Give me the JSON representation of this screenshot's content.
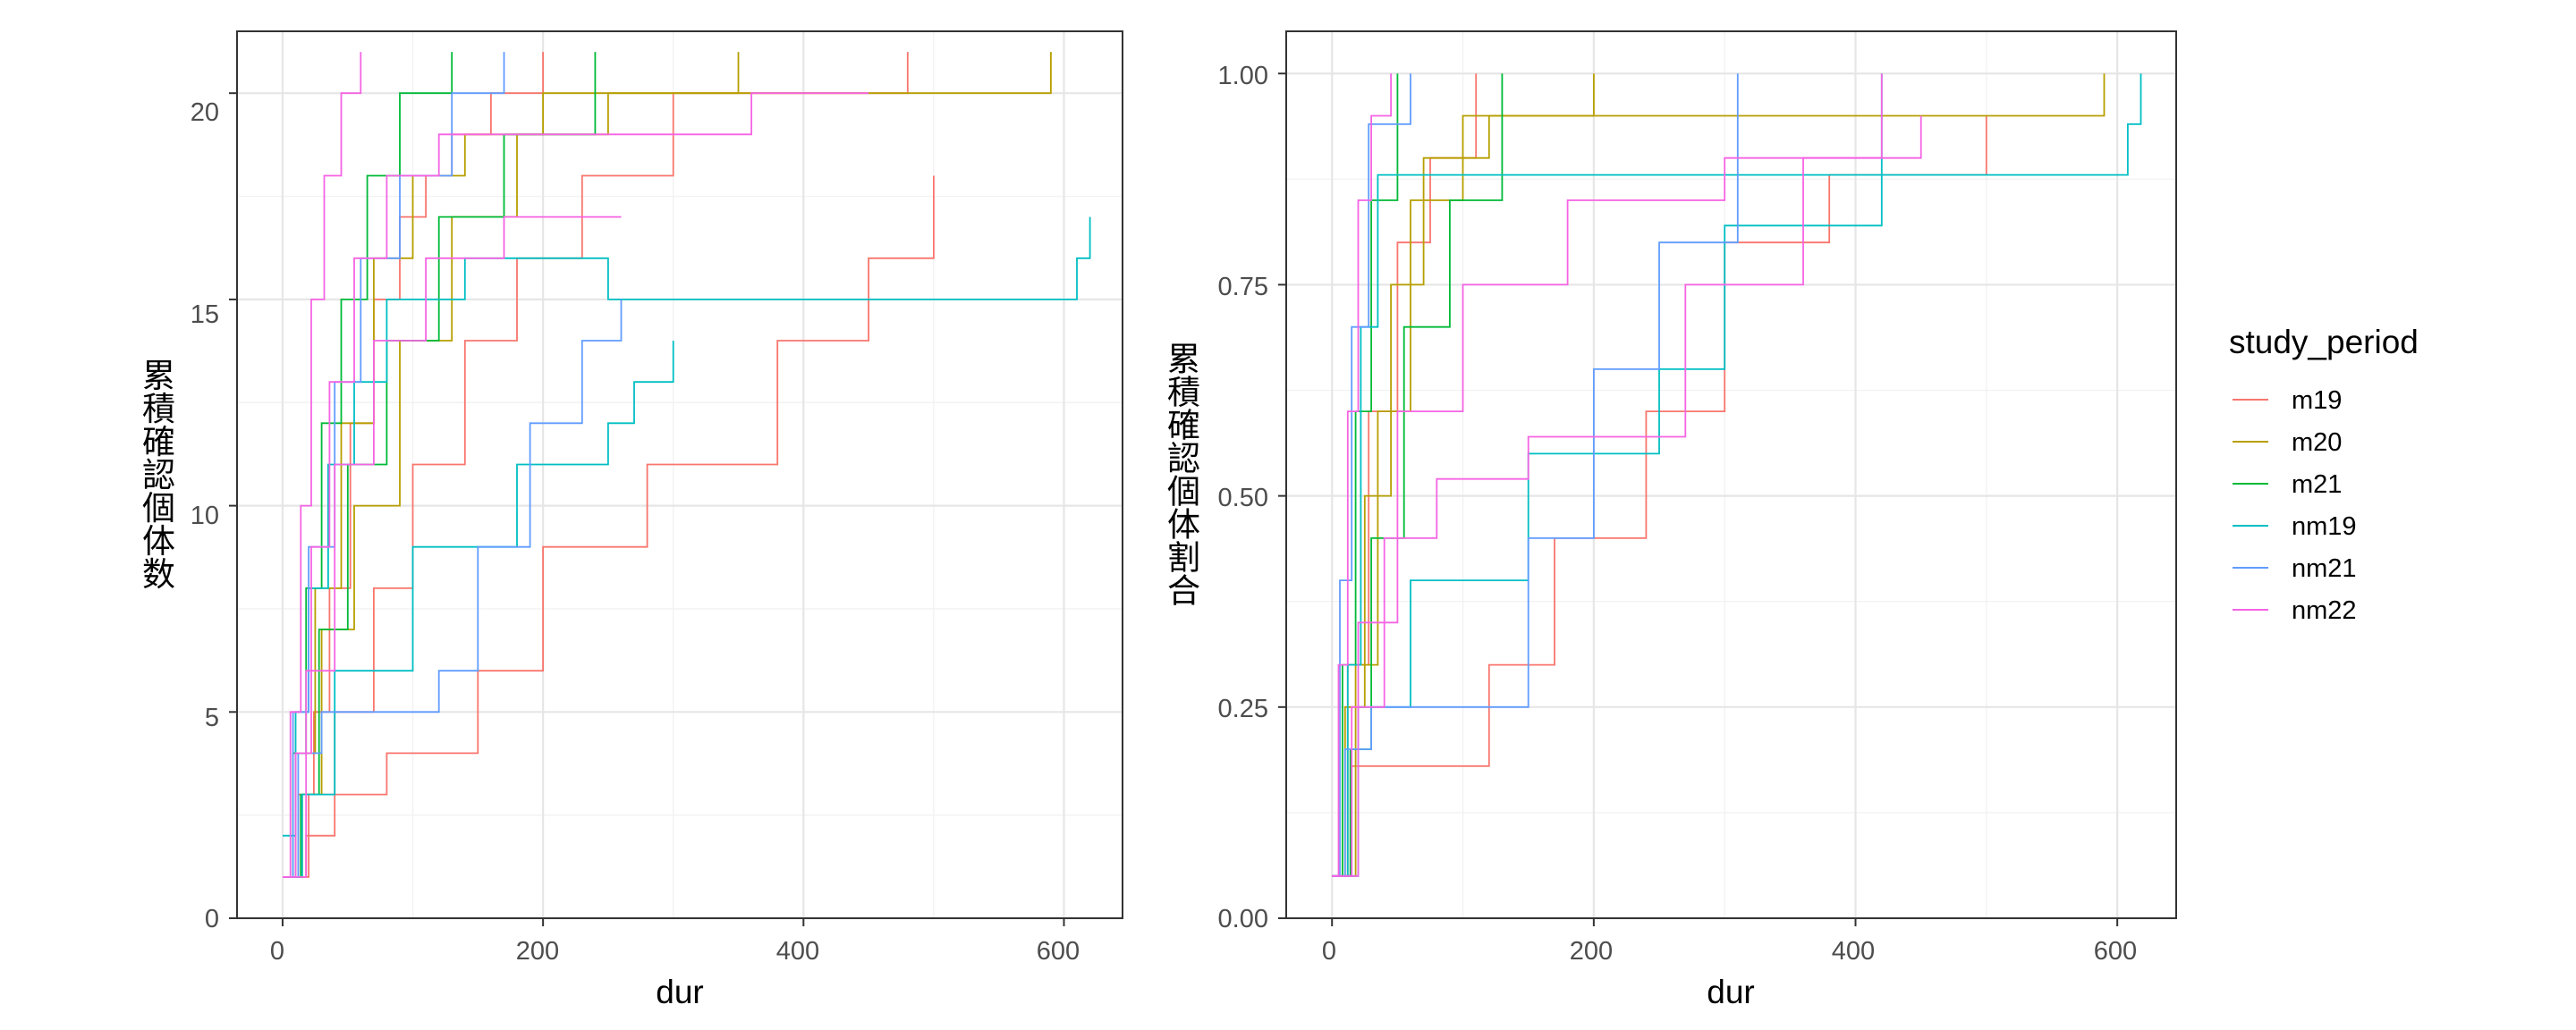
{
  "chart_data": [
    {
      "type": "line",
      "subtype": "step",
      "xlabel": "dur",
      "ylabel": "累積確認個体数",
      "xlim": [
        -35,
        645
      ],
      "ylim": [
        0,
        21.5
      ],
      "xticks": [
        0,
        200,
        400,
        600
      ],
      "yticks": [
        0,
        5,
        10,
        15,
        20
      ],
      "xtick_labels": [
        "0",
        "200",
        "400",
        "600"
      ],
      "ytick_labels": [
        "0",
        "5",
        "10",
        "15",
        "20"
      ],
      "grid": true,
      "legend": "shared, right",
      "series": [
        {
          "name": "m19",
          "color": "#F8766D",
          "values": [
            [
              [
                0,
                1
              ],
              [
                12,
                3
              ],
              [
                24,
                5
              ],
              [
                36,
                8
              ],
              [
                52,
                12
              ],
              [
                70,
                15
              ],
              [
                90,
                17
              ],
              [
                110,
                18
              ],
              [
                130,
                19
              ],
              [
                160,
                20
              ],
              [
                200,
                21
              ]
            ],
            [
              [
                0,
                1
              ],
              [
                20,
                3
              ],
              [
                80,
                4
              ],
              [
                150,
                6
              ],
              [
                200,
                9
              ],
              [
                280,
                11
              ],
              [
                380,
                14
              ],
              [
                450,
                16
              ],
              [
                500,
                18
              ]
            ],
            [
              [
                0,
                1
              ],
              [
                18,
                2
              ],
              [
                40,
                5
              ],
              [
                70,
                8
              ],
              [
                100,
                11
              ],
              [
                140,
                14
              ],
              [
                180,
                16
              ],
              [
                230,
                18
              ],
              [
                300,
                20
              ],
              [
                480,
                21
              ]
            ]
          ]
        },
        {
          "name": "m20",
          "color": "#B79F00",
          "values": [
            [
              [
                0,
                1
              ],
              [
                10,
                4
              ],
              [
                25,
                8
              ],
              [
                45,
                12
              ],
              [
                70,
                16
              ],
              [
                100,
                18
              ],
              [
                140,
                19
              ],
              [
                200,
                20
              ],
              [
                560,
                20
              ],
              [
                590,
                21
              ]
            ],
            [
              [
                0,
                1
              ],
              [
                15,
                3
              ],
              [
                30,
                7
              ],
              [
                55,
                10
              ],
              [
                90,
                14
              ],
              [
                130,
                17
              ],
              [
                180,
                19
              ],
              [
                250,
                20
              ],
              [
                350,
                21
              ]
            ]
          ]
        },
        {
          "name": "m21",
          "color": "#00BA38",
          "values": [
            [
              [
                0,
                1
              ],
              [
                8,
                4
              ],
              [
                18,
                8
              ],
              [
                30,
                12
              ],
              [
                45,
                15
              ],
              [
                65,
                18
              ],
              [
                90,
                20
              ],
              [
                130,
                21
              ]
            ],
            [
              [
                0,
                1
              ],
              [
                14,
                3
              ],
              [
                28,
                7
              ],
              [
                50,
                11
              ],
              [
                80,
                14
              ],
              [
                120,
                17
              ],
              [
                170,
                19
              ],
              [
                240,
                21
              ]
            ]
          ]
        },
        {
          "name": "nm19",
          "color": "#00BFC4",
          "values": [
            [
              [
                0,
                2
              ],
              [
                10,
                5
              ],
              [
                20,
                8
              ],
              [
                35,
                11
              ],
              [
                55,
                13
              ],
              [
                80,
                15
              ],
              [
                140,
                16
              ],
              [
                200,
                16
              ],
              [
                250,
                15
              ],
              [
                420,
                15
              ],
              [
                610,
                16
              ],
              [
                620,
                17
              ]
            ],
            [
              [
                0,
                1
              ],
              [
                15,
                3
              ],
              [
                40,
                6
              ],
              [
                100,
                9
              ],
              [
                180,
                11
              ],
              [
                250,
                12
              ],
              [
                270,
                13
              ],
              [
                300,
                14
              ]
            ]
          ]
        },
        {
          "name": "nm21",
          "color": "#619CFF",
          "values": [
            [
              [
                0,
                1
              ],
              [
                12,
                4
              ],
              [
                30,
                5
              ],
              [
                70,
                5
              ],
              [
                120,
                6
              ],
              [
                150,
                9
              ],
              [
                190,
                12
              ],
              [
                230,
                14
              ],
              [
                260,
                15
              ]
            ],
            [
              [
                0,
                1
              ],
              [
                8,
                5
              ],
              [
                20,
                9
              ],
              [
                40,
                13
              ],
              [
                60,
                16
              ],
              [
                90,
                18
              ],
              [
                130,
                20
              ],
              [
                170,
                21
              ]
            ]
          ]
        },
        {
          "name": "nm22",
          "color": "#F564E3",
          "values": [
            [
              [
                0,
                1
              ],
              [
                6,
                5
              ],
              [
                14,
                10
              ],
              [
                22,
                15
              ],
              [
                32,
                18
              ],
              [
                45,
                20
              ],
              [
                60,
                21
              ]
            ],
            [
              [
                0,
                1
              ],
              [
                10,
                4
              ],
              [
                22,
                9
              ],
              [
                36,
                13
              ],
              [
                55,
                16
              ],
              [
                80,
                18
              ],
              [
                120,
                19
              ],
              [
                200,
                19
              ],
              [
                360,
                20
              ],
              [
                450,
                20
              ]
            ],
            [
              [
                0,
                1
              ],
              [
                18,
                6
              ],
              [
                40,
                11
              ],
              [
                70,
                14
              ],
              [
                110,
                16
              ],
              [
                170,
                17
              ],
              [
                260,
                17
              ]
            ]
          ]
        }
      ]
    },
    {
      "type": "line",
      "subtype": "step",
      "xlabel": "dur",
      "ylabel": "累積確認個体割合",
      "xlim": [
        -35,
        645
      ],
      "ylim": [
        0,
        1.05
      ],
      "xticks": [
        0,
        200,
        400,
        600
      ],
      "yticks": [
        0,
        0.25,
        0.5,
        0.75,
        1.0
      ],
      "xtick_labels": [
        "0",
        "200",
        "400",
        "600"
      ],
      "ytick_labels": [
        "0.00",
        "0.25",
        "0.50",
        "0.75",
        "1.00"
      ],
      "grid": true,
      "legend": "shared, right",
      "series": [
        {
          "name": "m19",
          "color": "#F8766D",
          "values": [
            [
              [
                0,
                0.05
              ],
              [
                15,
                0.18
              ],
              [
                80,
                0.18
              ],
              [
                120,
                0.3
              ],
              [
                170,
                0.45
              ],
              [
                240,
                0.6
              ],
              [
                300,
                0.8
              ],
              [
                380,
                0.88
              ],
              [
                500,
                0.95
              ]
            ],
            [
              [
                0,
                0.05
              ],
              [
                12,
                0.3
              ],
              [
                28,
                0.6
              ],
              [
                50,
                0.8
              ],
              [
                75,
                0.9
              ],
              [
                110,
                1.0
              ]
            ]
          ]
        },
        {
          "name": "m20",
          "color": "#B79F00",
          "values": [
            [
              [
                0,
                0.05
              ],
              [
                10,
                0.25
              ],
              [
                25,
                0.5
              ],
              [
                45,
                0.75
              ],
              [
                70,
                0.9
              ],
              [
                120,
                0.95
              ],
              [
                560,
                0.95
              ],
              [
                590,
                1.0
              ]
            ],
            [
              [
                0,
                0.05
              ],
              [
                18,
                0.3
              ],
              [
                35,
                0.6
              ],
              [
                60,
                0.85
              ],
              [
                100,
                0.95
              ],
              [
                200,
                1.0
              ]
            ]
          ]
        },
        {
          "name": "m21",
          "color": "#00BA38",
          "values": [
            [
              [
                0,
                0.05
              ],
              [
                8,
                0.3
              ],
              [
                18,
                0.6
              ],
              [
                30,
                0.85
              ],
              [
                50,
                1.0
              ]
            ],
            [
              [
                0,
                0.05
              ],
              [
                14,
                0.2
              ],
              [
                30,
                0.45
              ],
              [
                55,
                0.7
              ],
              [
                90,
                0.85
              ],
              [
                130,
                1.0
              ]
            ]
          ]
        },
        {
          "name": "nm19",
          "color": "#00BFC4",
          "values": [
            [
              [
                0,
                0.05
              ],
              [
                12,
                0.3
              ],
              [
                22,
                0.7
              ],
              [
                35,
                0.88
              ],
              [
                80,
                0.88
              ],
              [
                420,
                0.88
              ],
              [
                600,
                0.88
              ],
              [
                608,
                0.94
              ],
              [
                618,
                1.0
              ]
            ],
            [
              [
                0,
                0.05
              ],
              [
                20,
                0.25
              ],
              [
                60,
                0.4
              ],
              [
                150,
                0.55
              ],
              [
                250,
                0.65
              ],
              [
                300,
                0.82
              ],
              [
                420,
                1.0
              ]
            ]
          ]
        },
        {
          "name": "nm21",
          "color": "#619CFF",
          "values": [
            [
              [
                0,
                0.05
              ],
              [
                10,
                0.2
              ],
              [
                30,
                0.25
              ],
              [
                110,
                0.25
              ],
              [
                150,
                0.45
              ],
              [
                200,
                0.65
              ],
              [
                250,
                0.8
              ],
              [
                310,
                1.0
              ]
            ],
            [
              [
                0,
                0.05
              ],
              [
                6,
                0.4
              ],
              [
                15,
                0.7
              ],
              [
                28,
                0.94
              ],
              [
                60,
                1.0
              ]
            ]
          ]
        },
        {
          "name": "nm22",
          "color": "#F564E3",
          "values": [
            [
              [
                0,
                0.05
              ],
              [
                5,
                0.3
              ],
              [
                12,
                0.6
              ],
              [
                20,
                0.85
              ],
              [
                30,
                0.95
              ],
              [
                45,
                1.0
              ]
            ],
            [
              [
                0,
                0.05
              ],
              [
                15,
                0.25
              ],
              [
                40,
                0.45
              ],
              [
                80,
                0.52
              ],
              [
                150,
                0.57
              ],
              [
                270,
                0.75
              ],
              [
                360,
                0.9
              ],
              [
                450,
                0.95
              ]
            ],
            [
              [
                0,
                0.05
              ],
              [
                20,
                0.35
              ],
              [
                50,
                0.6
              ],
              [
                100,
                0.75
              ],
              [
                180,
                0.85
              ],
              [
                300,
                0.9
              ],
              [
                420,
                1.0
              ]
            ]
          ]
        }
      ]
    }
  ],
  "legend": {
    "title": "study_period",
    "items": [
      {
        "label": "m19",
        "color": "#F8766D"
      },
      {
        "label": "m20",
        "color": "#B79F00"
      },
      {
        "label": "m21",
        "color": "#00BA38"
      },
      {
        "label": "nm19",
        "color": "#00BFC4"
      },
      {
        "label": "nm21",
        "color": "#619CFF"
      },
      {
        "label": "nm22",
        "color": "#F564E3"
      }
    ]
  }
}
